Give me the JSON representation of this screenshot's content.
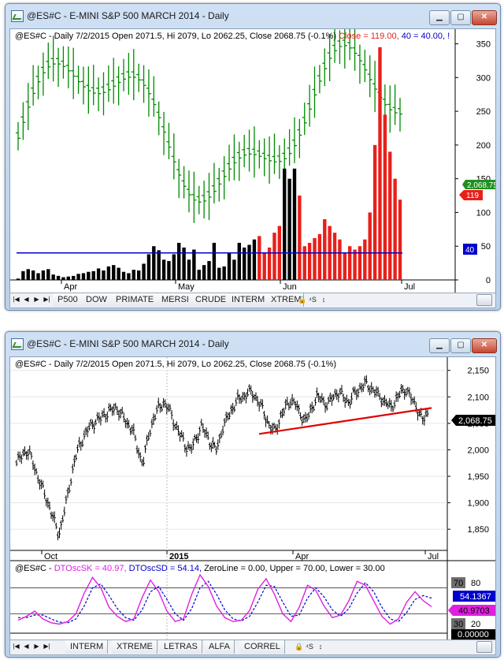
{
  "window1": {
    "title": "@ES#C - E-MINI S&P 500 MARCH 2014 - Daily",
    "header": {
      "prefix": "@ES#C - Daily 7/2/2015 Open 2071.5, Hi 2079, Lo 2062.25, Close 2068.75 (-0.1%)",
      "close_label": "Close = 119.00,",
      "line_label": "40 = 40.00, !",
      "close_color": "#e8201a",
      "line_color": "#0000cc"
    },
    "y_axis": {
      "min": 0,
      "max": 360,
      "ticks": [
        "350",
        "300",
        "250",
        "200",
        "150",
        "100",
        "50",
        "0"
      ]
    },
    "x_labels": [
      "Apr",
      "May",
      "Jun",
      "Jul"
    ],
    "badges": {
      "price": "2,068.75",
      "close": "119",
      "line": "40"
    },
    "tabs": [
      "P500",
      "DOW",
      "PRIMATE",
      "MERSI",
      "CRUDE",
      "INTERM",
      "XTREM"
    ],
    "colors": {
      "bars": "#008a00",
      "hist_black": "#000000",
      "hist_red": "#e8201a",
      "level_line": "#0000cc"
    }
  },
  "window2": {
    "title": "@ES#C - E-MINI S&P 500 MARCH 2014 - Daily",
    "header": "@ES#C - Daily 7/2/2015 Open 2071.5, Hi 2079, Lo 2062.25, Close 2068.75 (-0.1%)",
    "y_axis": {
      "min": 1810,
      "max": 2160,
      "ticks": [
        "2,150",
        "2,100",
        "2,050",
        "2,000",
        "1,950",
        "1,900",
        "1,850"
      ]
    },
    "x_labels": [
      "Oct",
      "2015",
      "Apr",
      "Jul"
    ],
    "price_badge": "2,068.75",
    "indicator": {
      "prefix": "@ES#C - ",
      "sk_label": "DTOscSK = 40.97,",
      "sd_label": "DTOscSD = 54.14,",
      "rest_label": "ZeroLine = 0.00, Upper = 70.00, Lower = 30.00",
      "sk_color": "#e020e0",
      "sd_color": "#0000cc",
      "ticks": [
        "80",
        "20"
      ],
      "upper_badge": "70",
      "lower_badge": "30",
      "sd_badge": "54.1367",
      "sk_badge": "40.9703",
      "zero_badge": "0.00000"
    },
    "tabs": [
      "INTERM",
      "XTREME",
      "LETRAS",
      "ALFA",
      "CORREL"
    ],
    "colors": {
      "bars": "#000000",
      "trendline": "#e00000"
    }
  },
  "chart_data": [
    {
      "type": "line",
      "title": "@ES#C - E-MINI S&P 500 MARCH 2014 - Daily",
      "notes": "Top pane: green OHLC bars with black/red histogram and blue level line",
      "series": [
        {
          "name": "Close",
          "values": [
            2,
            13,
            16,
            14,
            10,
            14,
            16,
            8,
            6,
            4,
            5,
            6,
            9,
            10,
            12,
            13,
            17,
            14,
            20,
            22,
            18,
            12,
            10,
            15,
            14,
            24,
            38,
            50,
            44,
            30,
            28,
            38,
            55,
            48,
            30,
            45,
            15,
            22,
            28,
            55,
            18,
            20,
            40,
            30,
            55,
            48,
            52,
            60,
            65,
            40,
            48,
            70,
            80,
            165,
            150,
            165,
            125,
            50,
            55,
            62,
            68,
            90,
            80,
            70,
            60,
            40,
            50,
            45,
            50,
            60,
            100,
            200,
            345,
            245,
            190,
            150,
            119
          ]
        },
        {
          "name": "40",
          "values": [
            40
          ]
        }
      ],
      "ylim": [
        0,
        360
      ],
      "x_tick_labels": [
        "Apr",
        "May",
        "Jun",
        "Jul"
      ]
    },
    {
      "type": "line",
      "title": "@ES#C - E-MINI S&P 500 MARCH 2014 - Daily",
      "series": [
        {
          "name": "Close",
          "values": [
            1975,
            1990,
            2000,
            1980,
            1950,
            1925,
            1900,
            1870,
            1840,
            1880,
            1930,
            1980,
            2010,
            2030,
            2045,
            2055,
            2060,
            2070,
            2075,
            2080,
            2065,
            2050,
            2040,
            2000,
            1975,
            2025,
            2060,
            2080,
            2090,
            2075,
            2050,
            2030,
            2010,
            2000,
            2020,
            2045,
            2030,
            2010,
            2000,
            2040,
            2060,
            2080,
            2095,
            2100,
            2110,
            2105,
            2090,
            2070,
            2045,
            2035,
            2060,
            2080,
            2095,
            2085,
            2065,
            2055,
            2080,
            2100,
            2095,
            2085,
            2100,
            2110,
            2100,
            2090,
            2105,
            2115,
            2125,
            2120,
            2110,
            2100,
            2090,
            2080,
            2095,
            2110,
            2115,
            2095,
            2080,
            2055,
            2069
          ]
        }
      ],
      "ylim": [
        1810,
        2160
      ],
      "x_tick_labels": [
        "Oct",
        "2015",
        "Apr",
        "Jul"
      ],
      "current_value": 2068.75
    },
    {
      "type": "line",
      "series": [
        {
          "name": "DTOscSK",
          "values": [
            20,
            26,
            34,
            22,
            16,
            14,
            18,
            30,
            62,
            86,
            70,
            40,
            26,
            18,
            22,
            55,
            82,
            64,
            34,
            18,
            22,
            60,
            90,
            72,
            42,
            24,
            18,
            20,
            35,
            68,
            84,
            60,
            30,
            18,
            40,
            74,
            66,
            42,
            24,
            28,
            50,
            80,
            74,
            50,
            26,
            14,
            22,
            48,
            64,
            50,
            41
          ]
        },
        {
          "name": "DTOscSD",
          "values": [
            24,
            24,
            28,
            28,
            22,
            17,
            16,
            22,
            42,
            70,
            76,
            58,
            38,
            24,
            20,
            36,
            64,
            72,
            52,
            30,
            20,
            38,
            70,
            80,
            60,
            36,
            22,
            19,
            26,
            48,
            74,
            72,
            48,
            26,
            28,
            54,
            70,
            56,
            36,
            26,
            38,
            62,
            78,
            64,
            40,
            22,
            18,
            32,
            52,
            58,
            54
          ]
        }
      ],
      "ylim": [
        0,
        90
      ],
      "reference_lines": {
        "ZeroLine": 0,
        "Upper": 70,
        "Lower": 30
      }
    }
  ]
}
